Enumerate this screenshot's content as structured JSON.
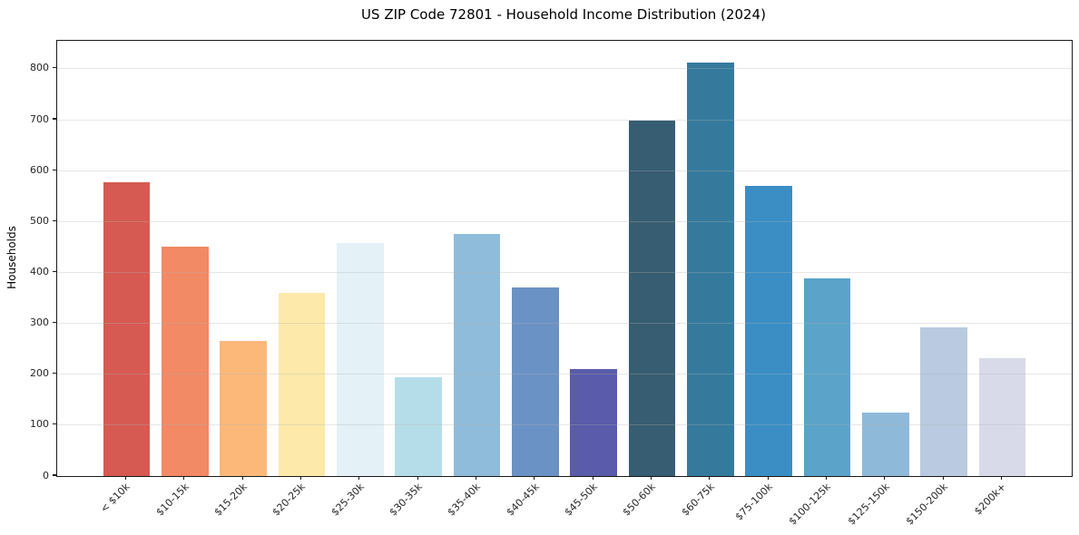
{
  "chart_data": {
    "type": "bar",
    "title": "US ZIP Code 72801 - Household Income Distribution (2024)",
    "xlabel": "",
    "ylabel": "Households",
    "categories": [
      "< $10k",
      "$10-15k",
      "$15-20k",
      "$20-25k",
      "$25-30k",
      "$30-35k",
      "$35-40k",
      "$40-45k",
      "$45-50k",
      "$50-60k",
      "$60-75k",
      "$75-100k",
      "$100-125k",
      "$125-150k",
      "$150-200k",
      "$200k+"
    ],
    "values": [
      578,
      450,
      265,
      360,
      457,
      195,
      475,
      371,
      210,
      698,
      813,
      570,
      388,
      125,
      292,
      232
    ],
    "bar_colors": [
      "#d65a52",
      "#f18a65",
      "#fbb879",
      "#fde9a9",
      "#e4f1f6",
      "#b5dde9",
      "#8fbcdb",
      "#6b92c4",
      "#5a5baa",
      "#375d72",
      "#357a9d",
      "#3a8ec4",
      "#5ba3c9",
      "#8fb9d9",
      "#b9cae1",
      "#d8dae9"
    ],
    "yticks": [
      0,
      100,
      200,
      300,
      400,
      500,
      600,
      700,
      800
    ],
    "ylim": [
      0,
      855
    ],
    "grid": true,
    "grid_color": "#b0b0b0",
    "axis_color": "#1a1a1a",
    "legend_position": "none",
    "plot_background": "#ffffff"
  }
}
